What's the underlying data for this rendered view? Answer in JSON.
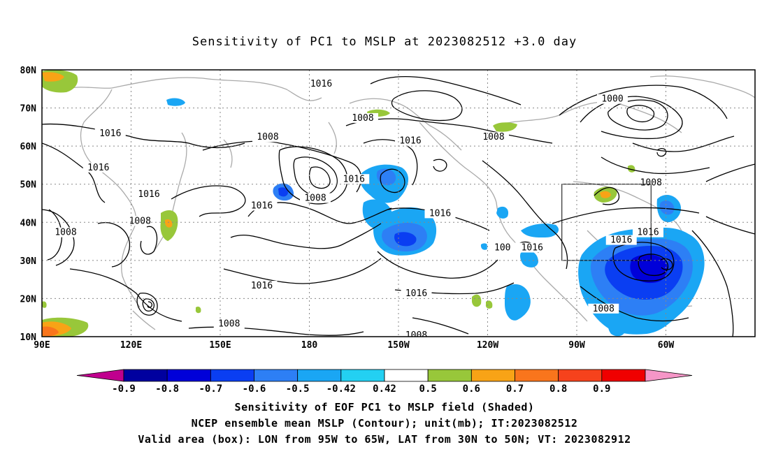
{
  "title": "Sensitivity of PC1 to MSLP at 2023082512 +3.0 day",
  "map": {
    "lat_labels": [
      "80N",
      "70N",
      "60N",
      "50N",
      "40N",
      "30N",
      "20N",
      "10N"
    ],
    "lon_labels": [
      "90E",
      "120E",
      "150E",
      "180",
      "150W",
      "120W",
      "90W",
      "60W"
    ],
    "contour_labels": [
      {
        "text": "1016",
        "lon": 113,
        "lat": 63
      },
      {
        "text": "1016",
        "lon": 109,
        "lat": 54
      },
      {
        "text": "1016",
        "lon": 126,
        "lat": 47
      },
      {
        "text": "1008",
        "lon": 123,
        "lat": 40
      },
      {
        "text": "1008",
        "lon": 98,
        "lat": 37
      },
      {
        "text": "1008",
        "lon": 166,
        "lat": 62
      },
      {
        "text": "1008",
        "lon": 182,
        "lat": 46
      },
      {
        "text": "1016",
        "lon": 164,
        "lat": 44
      },
      {
        "text": "1016",
        "lon": 184,
        "lat": 76
      },
      {
        "text": "1008",
        "lon": 198,
        "lat": 67
      },
      {
        "text": "1016",
        "lon": 195,
        "lat": 51
      },
      {
        "text": "1016",
        "lon": 214,
        "lat": 61
      },
      {
        "text": "1016",
        "lon": 224,
        "lat": 42
      },
      {
        "text": "1016",
        "lon": 164,
        "lat": 23
      },
      {
        "text": "1016",
        "lon": 216,
        "lat": 21
      },
      {
        "text": "1008",
        "lon": 153,
        "lat": 13
      },
      {
        "text": "1008",
        "lon": 216,
        "lat": 10
      },
      {
        "text": "1008",
        "lon": 242,
        "lat": 62
      },
      {
        "text": "1000",
        "lon": 282,
        "lat": 72
      },
      {
        "text": "1008",
        "lon": 295,
        "lat": 50
      },
      {
        "text": "1016",
        "lon": 294,
        "lat": 37
      },
      {
        "text": "1016",
        "lon": 285,
        "lat": 35
      },
      {
        "text": "1016",
        "lon": 255,
        "lat": 33
      },
      {
        "text": "1008",
        "lon": 279,
        "lat": 17
      },
      {
        "text": "100",
        "lon": 245,
        "lat": 33
      }
    ],
    "valid_box": {
      "lon_min": 265,
      "lon_max": 295,
      "lat_min": 30,
      "lat_max": 50
    }
  },
  "colorbar": {
    "labels": [
      "-0.9",
      "-0.8",
      "-0.7",
      "-0.6",
      "-0.5",
      "-0.42",
      "0.42",
      "0.5",
      "0.6",
      "0.7",
      "0.8",
      "0.9"
    ],
    "colors": [
      "#c0008e",
      "#00009f",
      "#0000d9",
      "#0a3ef2",
      "#2d7ff5",
      "#1aa6f4",
      "#23d0f2",
      "#ffffff",
      "#98c73a",
      "#f8a316",
      "#f9751c",
      "#f6421c",
      "#f00000",
      "#f596c7"
    ]
  },
  "caption": {
    "line1": "Sensitivity of EOF PC1 to MSLP field (Shaded)",
    "line2": "NCEP ensemble mean MSLP (Contour); unit(mb); IT:2023082512",
    "line3": "Valid area (box): LON from 95W to 65W, LAT from 30N to 50N; VT: 2023082912"
  }
}
